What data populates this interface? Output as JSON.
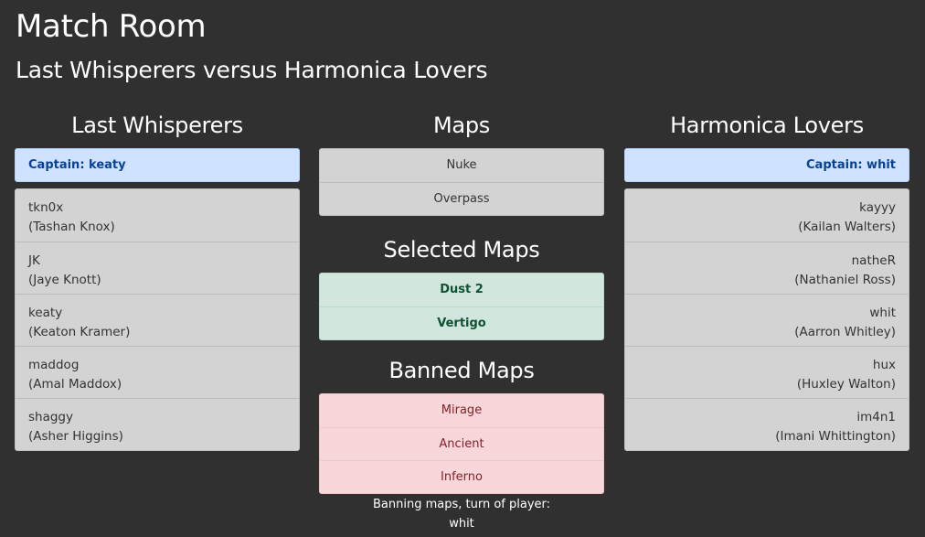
{
  "page": {
    "title": "Match Room",
    "subtitle": "Last Whisperers versus Harmonica Lovers"
  },
  "team_left": {
    "name": "Last Whisperers",
    "captain_label": "Captain: keaty",
    "players": [
      {
        "nick": "tkn0x",
        "full_name": "(Tashan Knox)"
      },
      {
        "nick": "JK",
        "full_name": "(Jaye Knott)"
      },
      {
        "nick": "keaty",
        "full_name": "(Keaton Kramer)"
      },
      {
        "nick": "maddog",
        "full_name": "(Amal Maddox)"
      },
      {
        "nick": "shaggy",
        "full_name": "(Asher Higgins)"
      }
    ]
  },
  "team_right": {
    "name": "Harmonica Lovers",
    "captain_label": "Captain: whit",
    "players": [
      {
        "nick": "kayyy",
        "full_name": "(Kailan Walters)"
      },
      {
        "nick": "natheR",
        "full_name": "(Nathaniel Ross)"
      },
      {
        "nick": "whit",
        "full_name": "(Aarron Whitley)"
      },
      {
        "nick": "hux",
        "full_name": "(Huxley Walton)"
      },
      {
        "nick": "im4n1",
        "full_name": "(Imani Whittington)"
      }
    ]
  },
  "maps": {
    "heading": "Maps",
    "available": [
      "Nuke",
      "Overpass"
    ],
    "selected_heading": "Selected Maps",
    "selected": [
      "Dust 2",
      "Vertigo"
    ],
    "banned_heading": "Banned Maps",
    "banned": [
      "Mirage",
      "Ancient",
      "Inferno"
    ]
  },
  "status": {
    "turn_label": "Banning maps, turn of player:",
    "turn_player": "whit"
  },
  "colors": {
    "background": "#303030",
    "captain_bg": "#cfe2ff",
    "captain_text": "#084298",
    "selected_bg": "#d1e7dd",
    "selected_text": "#0f5132",
    "banned_bg": "#f8d7da",
    "banned_text": "#842029",
    "neutral_bg": "#d3d3d3"
  }
}
